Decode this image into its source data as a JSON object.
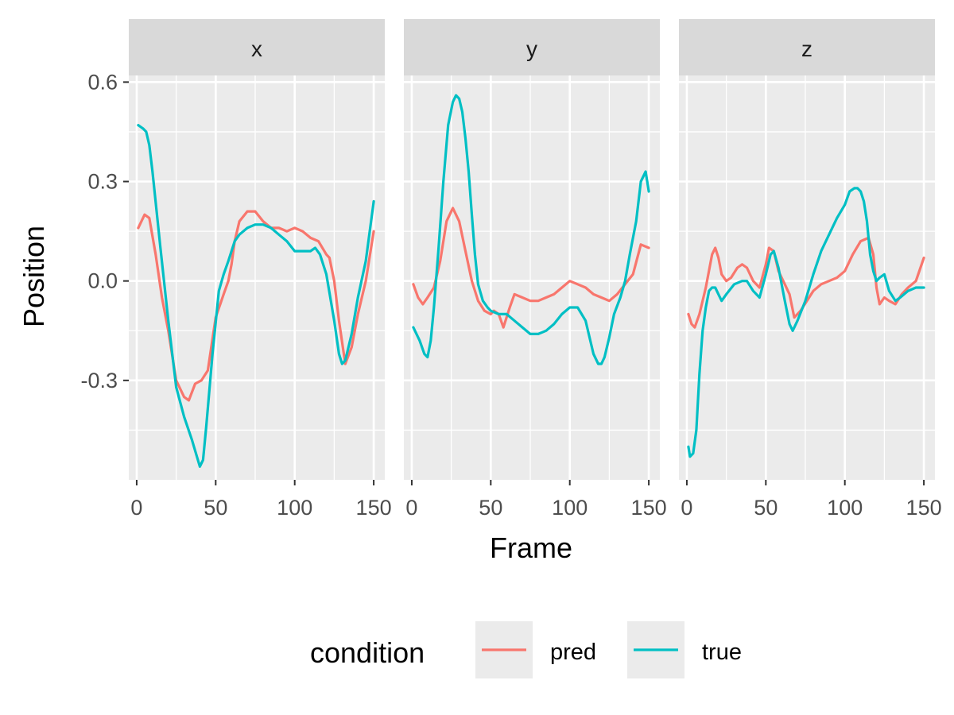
{
  "chart_data": {
    "type": "line",
    "xlabel": "Frame",
    "ylabel": "Position",
    "xlim": [
      -5,
      157
    ],
    "ylim": [
      -0.6,
      0.62
    ],
    "x_ticks": [
      0,
      50,
      100,
      150
    ],
    "x_tick_labels": [
      "0",
      "50",
      "100",
      "150"
    ],
    "y_ticks": [
      -0.3,
      0.0,
      0.3,
      0.6
    ],
    "y_tick_labels": [
      "-0.3",
      "0.0",
      "0.3",
      "0.6"
    ],
    "grid": true,
    "legend": {
      "title": "condition",
      "placement": "bottom",
      "entries": [
        {
          "name": "pred",
          "color": "#F8766D"
        },
        {
          "name": "true",
          "color": "#00BFC4"
        }
      ]
    },
    "panels": [
      {
        "strip": "x",
        "series": [
          {
            "name": "pred",
            "x": [
              1,
              5,
              8,
              12,
              16,
              20,
              25,
              30,
              33,
              37,
              41,
              45,
              50,
              55,
              58,
              60,
              62,
              65,
              70,
              75,
              80,
              85,
              90,
              95,
              100,
              105,
              110,
              115,
              120,
              122,
              125,
              128,
              132,
              136,
              140,
              145,
              150
            ],
            "y": [
              0.16,
              0.2,
              0.19,
              0.08,
              -0.05,
              -0.15,
              -0.3,
              -0.35,
              -0.36,
              -0.31,
              -0.3,
              -0.27,
              -0.11,
              -0.04,
              0.0,
              0.05,
              0.12,
              0.18,
              0.21,
              0.21,
              0.18,
              0.16,
              0.16,
              0.15,
              0.16,
              0.15,
              0.13,
              0.12,
              0.08,
              0.07,
              0.0,
              -0.12,
              -0.25,
              -0.2,
              -0.1,
              0.0,
              0.15
            ]
          },
          {
            "name": "true",
            "x": [
              1,
              4,
              6,
              8,
              10,
              15,
              20,
              25,
              30,
              35,
              40,
              42,
              44,
              48,
              52,
              55,
              58,
              62,
              65,
              70,
              75,
              80,
              85,
              90,
              95,
              100,
              105,
              110,
              113,
              116,
              120,
              125,
              128,
              130,
              132,
              136,
              140,
              145,
              150
            ],
            "y": [
              0.47,
              0.46,
              0.45,
              0.41,
              0.33,
              0.1,
              -0.12,
              -0.32,
              -0.41,
              -0.48,
              -0.56,
              -0.54,
              -0.44,
              -0.22,
              -0.03,
              0.02,
              0.06,
              0.12,
              0.14,
              0.16,
              0.17,
              0.17,
              0.16,
              0.14,
              0.12,
              0.09,
              0.09,
              0.09,
              0.1,
              0.08,
              0.02,
              -0.12,
              -0.22,
              -0.25,
              -0.24,
              -0.16,
              -0.05,
              0.06,
              0.24
            ]
          }
        ]
      },
      {
        "strip": "y",
        "series": [
          {
            "name": "pred",
            "x": [
              1,
              4,
              7,
              10,
              14,
              18,
              22,
              26,
              30,
              34,
              38,
              42,
              46,
              50,
              52,
              55,
              58,
              62,
              65,
              70,
              75,
              80,
              85,
              90,
              95,
              100,
              105,
              110,
              115,
              120,
              125,
              130,
              135,
              140,
              145,
              150
            ],
            "y": [
              -0.01,
              -0.05,
              -0.07,
              -0.05,
              -0.02,
              0.06,
              0.18,
              0.22,
              0.18,
              0.09,
              0.0,
              -0.06,
              -0.09,
              -0.1,
              -0.09,
              -0.1,
              -0.14,
              -0.08,
              -0.04,
              -0.05,
              -0.06,
              -0.06,
              -0.05,
              -0.04,
              -0.02,
              0.0,
              -0.01,
              -0.02,
              -0.04,
              -0.05,
              -0.06,
              -0.04,
              -0.01,
              0.02,
              0.11,
              0.1
            ]
          },
          {
            "name": "true",
            "x": [
              1,
              5,
              8,
              10,
              12,
              14,
              17,
              20,
              23,
              26,
              28,
              30,
              32,
              34,
              36,
              38,
              40,
              42,
              45,
              48,
              50,
              55,
              60,
              65,
              70,
              75,
              80,
              85,
              90,
              95,
              100,
              105,
              110,
              115,
              118,
              120,
              122,
              125,
              128,
              132,
              135,
              138,
              142,
              145,
              148,
              150
            ],
            "y": [
              -0.14,
              -0.18,
              -0.22,
              -0.23,
              -0.18,
              -0.08,
              0.1,
              0.3,
              0.47,
              0.54,
              0.56,
              0.55,
              0.51,
              0.43,
              0.33,
              0.2,
              0.08,
              -0.01,
              -0.06,
              -0.08,
              -0.09,
              -0.1,
              -0.1,
              -0.12,
              -0.14,
              -0.16,
              -0.16,
              -0.15,
              -0.13,
              -0.1,
              -0.08,
              -0.08,
              -0.12,
              -0.22,
              -0.25,
              -0.25,
              -0.23,
              -0.17,
              -0.1,
              -0.05,
              0.0,
              0.08,
              0.18,
              0.3,
              0.33,
              0.27
            ]
          }
        ]
      },
      {
        "strip": "z",
        "series": [
          {
            "name": "pred",
            "x": [
              1,
              3,
              5,
              8,
              12,
              16,
              18,
              20,
              22,
              25,
              28,
              32,
              35,
              38,
              42,
              46,
              50,
              52,
              55,
              58,
              62,
              65,
              68,
              72,
              76,
              80,
              85,
              90,
              95,
              100,
              105,
              110,
              115,
              118,
              120,
              122,
              125,
              128,
              132,
              136,
              140,
              145,
              150
            ],
            "y": [
              -0.1,
              -0.13,
              -0.14,
              -0.1,
              -0.02,
              0.08,
              0.1,
              0.07,
              0.02,
              0.0,
              0.01,
              0.04,
              0.05,
              0.04,
              0.0,
              -0.02,
              0.05,
              0.1,
              0.09,
              0.03,
              -0.01,
              -0.04,
              -0.11,
              -0.09,
              -0.06,
              -0.03,
              -0.01,
              0.0,
              0.01,
              0.03,
              0.08,
              0.12,
              0.13,
              0.08,
              -0.02,
              -0.07,
              -0.05,
              -0.06,
              -0.07,
              -0.04,
              -0.02,
              0.0,
              0.07
            ]
          },
          {
            "name": "true",
            "x": [
              1,
              2,
              4,
              6,
              8,
              10,
              12,
              14,
              16,
              18,
              20,
              22,
              25,
              30,
              35,
              38,
              42,
              46,
              50,
              53,
              55,
              58,
              62,
              65,
              67,
              70,
              75,
              80,
              85,
              90,
              95,
              100,
              103,
              106,
              108,
              110,
              112,
              114,
              116,
              118,
              120,
              122,
              125,
              128,
              132,
              135,
              140,
              145,
              150
            ],
            "y": [
              -0.5,
              -0.53,
              -0.52,
              -0.45,
              -0.28,
              -0.15,
              -0.08,
              -0.03,
              -0.02,
              -0.02,
              -0.04,
              -0.06,
              -0.04,
              -0.01,
              0.0,
              0.0,
              -0.03,
              -0.05,
              0.02,
              0.08,
              0.09,
              0.04,
              -0.06,
              -0.13,
              -0.15,
              -0.12,
              -0.06,
              0.02,
              0.09,
              0.14,
              0.19,
              0.23,
              0.27,
              0.28,
              0.28,
              0.27,
              0.24,
              0.18,
              0.08,
              0.03,
              0.0,
              0.01,
              0.02,
              -0.03,
              -0.06,
              -0.05,
              -0.03,
              -0.02,
              -0.02
            ]
          }
        ]
      }
    ]
  }
}
